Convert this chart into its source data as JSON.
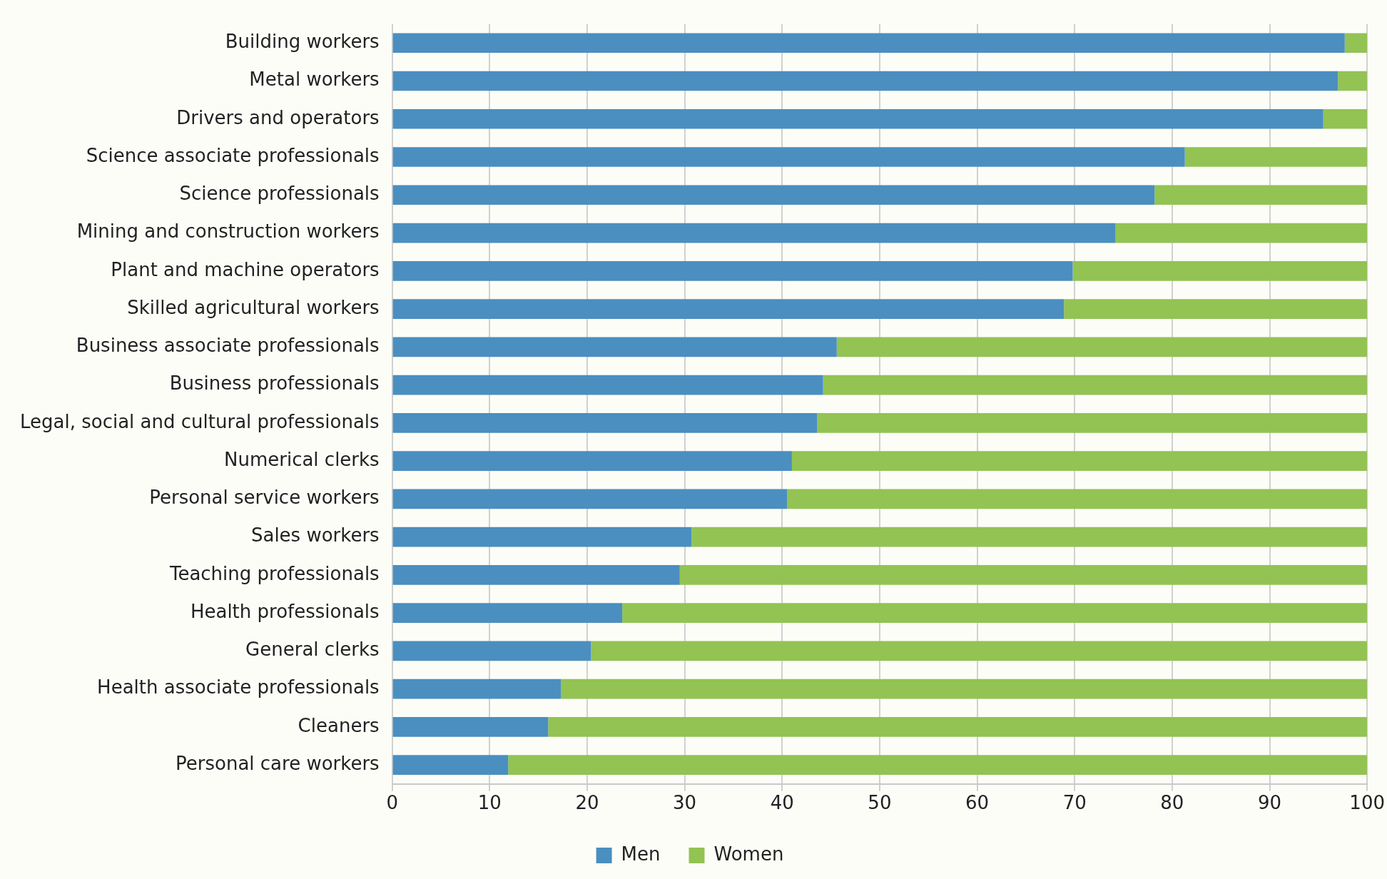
{
  "chart_data": {
    "type": "bar",
    "orientation": "horizontal",
    "stacked": true,
    "categories": [
      "Building workers",
      "Metal workers",
      "Drivers and operators",
      "Science associate professionals",
      "Science professionals",
      "Mining and construction workers",
      "Plant and machine operators",
      "Skilled agricultural workers",
      "Business associate professionals",
      "Business professionals",
      "Legal, social and cultural professionals",
      "Numerical clerks",
      "Personal service workers",
      "Sales workers",
      "Teaching professionals",
      "Health professionals",
      "General clerks",
      "Health associate professionals",
      "Cleaners",
      "Personal care workers"
    ],
    "series": [
      {
        "name": "Men",
        "color": "#4a8fc0",
        "values": [
          97.7,
          97.0,
          95.5,
          81.3,
          78.2,
          74.2,
          69.8,
          68.9,
          45.6,
          44.2,
          43.6,
          41.0,
          40.5,
          30.7,
          29.5,
          23.6,
          20.4,
          17.3,
          16.0,
          11.9
        ]
      },
      {
        "name": "Women",
        "color": "#92c353",
        "values": [
          2.3,
          3.0,
          4.5,
          18.7,
          21.8,
          25.8,
          30.2,
          31.1,
          54.4,
          55.8,
          56.4,
          59.0,
          59.5,
          69.3,
          70.5,
          76.4,
          79.6,
          82.7,
          84.0,
          88.1
        ]
      }
    ],
    "xlim": [
      0,
      100
    ],
    "xticks": [
      0,
      10,
      20,
      30,
      40,
      50,
      60,
      70,
      80,
      90,
      100
    ],
    "grid": "x",
    "legend": "bottom"
  }
}
